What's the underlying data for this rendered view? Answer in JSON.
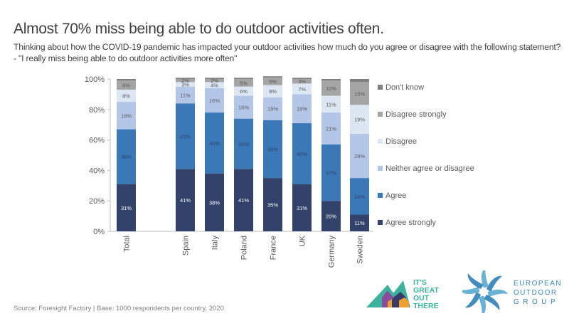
{
  "header": {
    "title": "Almost 70% miss being able to do outdoor activities often.",
    "subtitle": "Thinking about how the COVID-19 pandemic has impacted your outdoor activities how much do you agree or disagree with the following statement? - \"I really miss being able to do outdoor activities more often\""
  },
  "footer": {
    "source": "Source: Foresight Factory | Base:  1000 respondents per country, 2020"
  },
  "logos": {
    "left": {
      "lines": [
        "IT'S",
        "GREAT",
        "OUT",
        "THERE"
      ]
    },
    "right": {
      "lines": [
        "EUROPEAN",
        "OUTDOOR",
        "GROUP"
      ]
    }
  },
  "chart_data": {
    "type": "bar",
    "stacked": true,
    "title": "Almost 70% miss being able to do outdoor activities often.",
    "xlabel": "",
    "ylabel": "",
    "ylim": [
      0,
      100
    ],
    "yticks": [
      "0%",
      "20%",
      "40%",
      "60%",
      "80%",
      "100%"
    ],
    "grid": false,
    "legend_position": "right",
    "categories": [
      "Total",
      "Spain",
      "Italy",
      "Poland",
      "France",
      "UK",
      "Germany",
      "Sweden"
    ],
    "series": [
      {
        "name": "Agree strongly",
        "color": "#33426a",
        "label_color": "#ffffff",
        "values": [
          31,
          41,
          38,
          41,
          35,
          31,
          20,
          11
        ]
      },
      {
        "name": "Agree",
        "color": "#3a78b8",
        "label_color": "#33426a",
        "values": [
          36,
          43,
          40,
          33,
          38,
          40,
          37,
          24
        ]
      },
      {
        "name": "Neither agree or disagree",
        "color": "#b4c6e7",
        "label_color": "#595959",
        "values": [
          18,
          11,
          16,
          15,
          15,
          19,
          21,
          29
        ]
      },
      {
        "name": "Disagree",
        "color": "#dde6f3",
        "label_color": "#595959",
        "values": [
          8,
          3,
          4,
          6,
          8,
          7,
          11,
          19
        ]
      },
      {
        "name": "Disagree strongly",
        "color": "#a5a5a5",
        "label_color": "#595959",
        "values": [
          6,
          2,
          2,
          5,
          5,
          3,
          10,
          15
        ]
      },
      {
        "name": "Don't know",
        "color": "#7f7f7f",
        "label_color": "#595959",
        "values": [
          1,
          0,
          0,
          0,
          0,
          0,
          1,
          2
        ]
      }
    ],
    "legend_order": [
      "Don't know",
      "Disagree strongly",
      "Disagree",
      "Neither agree or disagree",
      "Agree",
      "Agree strongly"
    ]
  }
}
